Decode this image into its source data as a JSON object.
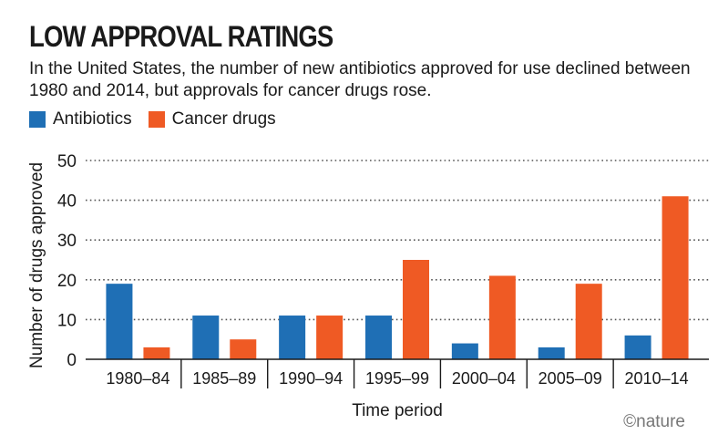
{
  "title": "LOW APPROVAL RATINGS",
  "subtitle": "In the United States, the number of new antibiotics approved for use declined between 1980 and 2014, but approvals for cancer drugs rose.",
  "credit": "©nature",
  "colors": {
    "antibiotics": "#1f6fb5",
    "cancer": "#ef5a24",
    "grid": "#555555"
  },
  "chart_data": {
    "type": "bar",
    "title": "LOW APPROVAL RATINGS",
    "xlabel": "Time period",
    "ylabel": "Number of drugs approved",
    "ylim": [
      0,
      50
    ],
    "yticks": [
      0,
      10,
      20,
      30,
      40,
      50
    ],
    "categories": [
      "1980–84",
      "1985–89",
      "1990–94",
      "1995–99",
      "2000–04",
      "2005–09",
      "2010–14"
    ],
    "series": [
      {
        "name": "Antibiotics",
        "values": [
          19,
          11,
          11,
          11,
          4,
          3,
          6
        ]
      },
      {
        "name": "Cancer drugs",
        "values": [
          3,
          5,
          11,
          25,
          21,
          19,
          41
        ]
      }
    ],
    "legend": "top-left",
    "grid": true
  }
}
